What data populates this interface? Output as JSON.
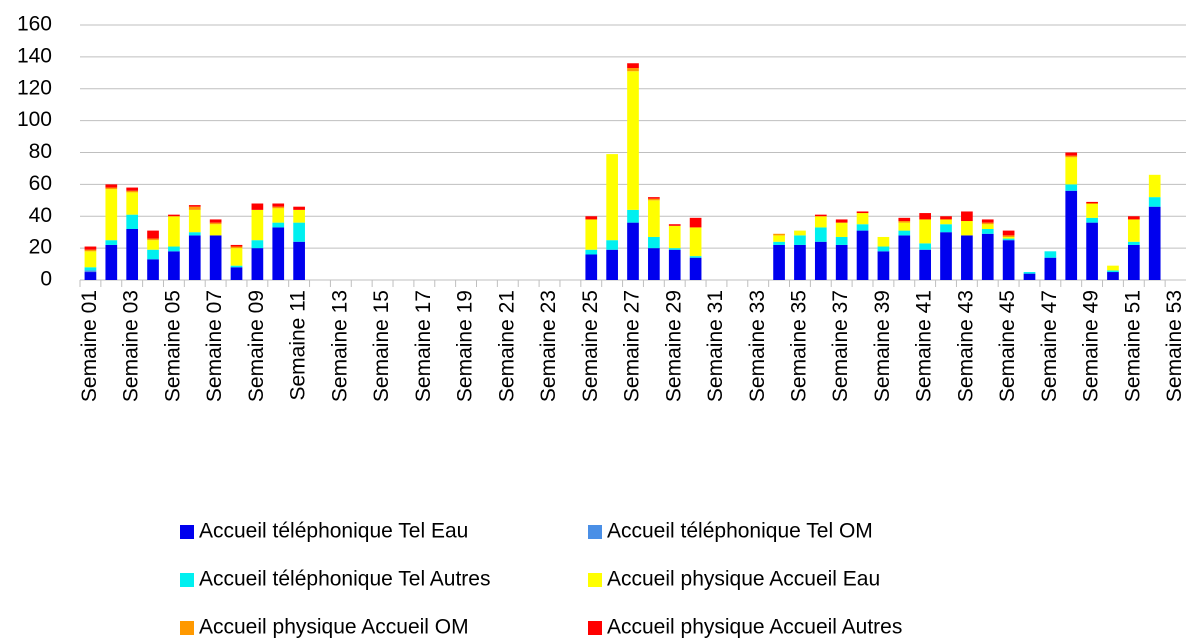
{
  "chart_data": {
    "type": "bar",
    "stacked": true,
    "categories": [
      "Semaine 01",
      null,
      "Semaine 03",
      null,
      "Semaine 05",
      null,
      "Semaine 07",
      null,
      "Semaine 09",
      null,
      "Semaine 11",
      null,
      "Semaine 13",
      null,
      "Semaine 15",
      null,
      "Semaine 17",
      null,
      "Semaine 19",
      null,
      "Semaine 21",
      null,
      "Semaine 23",
      null,
      "Semaine 25",
      null,
      "Semaine 27",
      null,
      "Semaine 29",
      null,
      "Semaine 31",
      null,
      "Semaine 33",
      null,
      "Semaine 35",
      null,
      "Semaine 37",
      null,
      "Semaine 39",
      null,
      "Semaine 41",
      null,
      "Semaine 43",
      null,
      "Semaine 45",
      null,
      "Semaine 47",
      null,
      "Semaine 49",
      null,
      "Semaine 51",
      null,
      "Semaine 53"
    ],
    "series": [
      {
        "name": "Accueil téléphonique Tel Eau",
        "color": "#0000ee",
        "values": [
          5,
          22,
          32,
          13,
          18,
          28,
          28,
          8,
          20,
          33,
          24,
          0,
          0,
          0,
          0,
          0,
          0,
          0,
          0,
          0,
          0,
          0,
          0,
          0,
          16,
          19,
          36,
          20,
          19,
          14,
          0,
          0,
          0,
          22,
          22,
          24,
          22,
          31,
          18,
          28,
          19,
          30,
          28,
          29,
          25,
          4,
          14,
          56,
          36,
          5,
          22,
          46,
          0
        ]
      },
      {
        "name": "Accueil téléphonique Tel OM",
        "color": "#4a8fe6",
        "values": [
          1,
          0,
          0,
          0,
          0,
          0,
          0,
          0,
          0,
          0,
          0,
          0,
          0,
          0,
          0,
          0,
          0,
          0,
          0,
          0,
          0,
          0,
          0,
          0,
          0,
          0,
          0,
          0,
          0,
          0,
          0,
          0,
          0,
          0,
          0,
          0,
          0,
          0,
          0,
          0,
          0,
          0,
          0,
          0,
          0,
          0,
          0,
          0,
          0,
          0,
          0,
          0,
          0
        ]
      },
      {
        "name": "Accueil téléphonique Tel Autres",
        "color": "#00f0f0",
        "values": [
          2,
          3,
          9,
          6,
          3,
          2,
          0,
          1,
          5,
          3,
          12,
          0,
          0,
          0,
          0,
          0,
          0,
          0,
          0,
          0,
          0,
          0,
          0,
          0,
          3,
          6,
          8,
          7,
          1,
          1,
          0,
          0,
          0,
          2,
          6,
          9,
          5,
          4,
          3,
          3,
          4,
          5,
          0,
          3,
          1,
          1,
          4,
          4,
          3,
          1,
          2,
          6,
          0
        ]
      },
      {
        "name": "Accueil physique Accueil Eau",
        "color": "#ffff00",
        "values": [
          10,
          32,
          14,
          6,
          19,
          14,
          7,
          11,
          19,
          9,
          8,
          0,
          0,
          0,
          0,
          0,
          0,
          0,
          0,
          0,
          0,
          0,
          0,
          0,
          19,
          54,
          87,
          23,
          14,
          18,
          0,
          0,
          0,
          4,
          3,
          7,
          9,
          7,
          6,
          5,
          15,
          3,
          9,
          3,
          1,
          0,
          0,
          17,
          9,
          3,
          14,
          14,
          0
        ]
      },
      {
        "name": "Accueil physique Accueil OM",
        "color": "#ff9900",
        "values": [
          1,
          1,
          1,
          1,
          0,
          2,
          1,
          1,
          0,
          1,
          0,
          0,
          0,
          0,
          0,
          0,
          0,
          0,
          0,
          0,
          0,
          0,
          0,
          0,
          0,
          0,
          2,
          1,
          0,
          0,
          0,
          0,
          0,
          1,
          0,
          0,
          0,
          0,
          0,
          1,
          0,
          0,
          0,
          1,
          1,
          0,
          0,
          1,
          0,
          0,
          0,
          0,
          0
        ]
      },
      {
        "name": "Accueil physique Accueil Autres",
        "color": "#ff0000",
        "values": [
          2,
          2,
          2,
          5,
          1,
          1,
          2,
          1,
          4,
          2,
          2,
          0,
          0,
          0,
          0,
          0,
          0,
          0,
          0,
          0,
          0,
          0,
          0,
          0,
          2,
          0,
          3,
          1,
          1,
          6,
          0,
          0,
          0,
          0,
          0,
          1,
          2,
          1,
          0,
          2,
          4,
          2,
          6,
          2,
          3,
          0,
          0,
          2,
          1,
          0,
          2,
          0,
          0
        ]
      }
    ],
    "ylim": [
      0,
      160
    ],
    "yticks": [
      0,
      20,
      40,
      60,
      80,
      100,
      120,
      140,
      160
    ],
    "grid": true
  }
}
